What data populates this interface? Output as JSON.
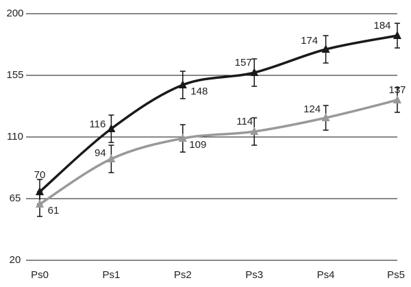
{
  "chart_data": {
    "type": "line",
    "categories": [
      "Ps0",
      "Ps1",
      "Ps2",
      "Ps3",
      "Ps4",
      "Ps5"
    ],
    "series": [
      {
        "color": "#1a1a1a",
        "values": [
          70,
          116,
          148,
          157,
          174,
          184
        ],
        "errors": [
          9,
          10,
          10,
          10,
          10,
          9
        ]
      },
      {
        "color": "#999999",
        "values": [
          61,
          94,
          109,
          114,
          124,
          137
        ],
        "errors": [
          9,
          10,
          10,
          10,
          9,
          9
        ]
      }
    ],
    "ylim": [
      20,
      200
    ],
    "yticks": [
      20,
      65,
      110,
      155,
      200
    ],
    "grid": true
  }
}
